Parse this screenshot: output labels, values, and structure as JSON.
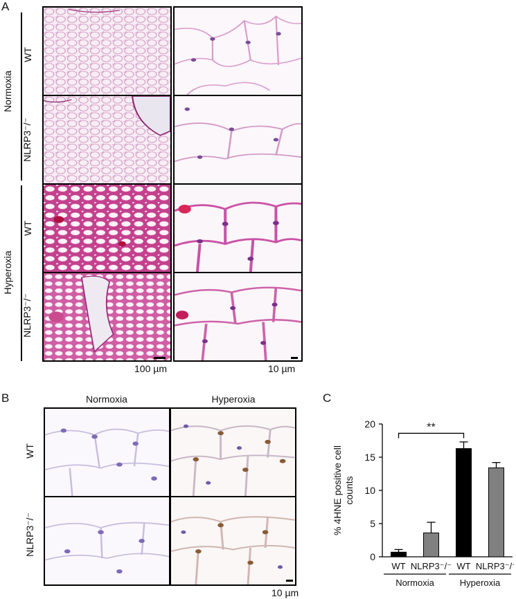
{
  "panelA": {
    "letter": "A",
    "groups": [
      "Normoxia",
      "Hyperoxia"
    ],
    "rows": [
      "WT",
      "NLRP3⁻/⁻",
      "WT",
      "NLRP3⁻/⁻"
    ],
    "scale_low": "100 µm",
    "scale_high": "10 µm"
  },
  "panelB": {
    "letter": "B",
    "columns": [
      "Normoxia",
      "Hyperoxia"
    ],
    "rows": [
      "WT",
      "NLRP3⁻/⁻"
    ],
    "scale": "10 µm"
  },
  "panelC": {
    "letter": "C"
  },
  "chart_data": {
    "type": "bar",
    "ylabel": "% 4HNE positive cell counts",
    "ylim": [
      0,
      20
    ],
    "yticks": [
      0,
      5,
      10,
      15,
      20
    ],
    "categories": [
      "WT",
      "NLRP3⁻/⁻",
      "WT",
      "NLRP3⁻/⁻"
    ],
    "groups": [
      "Normoxia",
      "Hyperoxia"
    ],
    "values": [
      0.7,
      3.6,
      16.3,
      13.4
    ],
    "errors": [
      0.4,
      1.6,
      1.0,
      0.8
    ],
    "colors": [
      "#000000",
      "#808080",
      "#000000",
      "#808080"
    ],
    "significance": "**"
  }
}
